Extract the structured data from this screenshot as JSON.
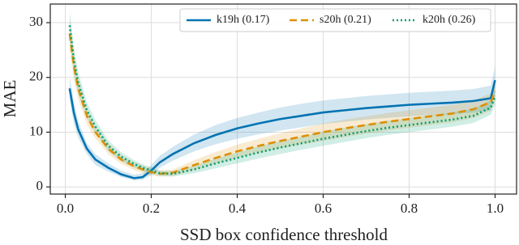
{
  "chart_data": {
    "type": "line",
    "xlabel": "SSD box confidence threshold",
    "ylabel": "MAE",
    "x": [
      0.01,
      0.02,
      0.03,
      0.05,
      0.07,
      0.1,
      0.13,
      0.16,
      0.18,
      0.2,
      0.22,
      0.25,
      0.3,
      0.35,
      0.4,
      0.45,
      0.5,
      0.55,
      0.6,
      0.65,
      0.7,
      0.75,
      0.8,
      0.85,
      0.9,
      0.95,
      0.99,
      1.0
    ],
    "series": [
      {
        "name": "k19h (0.17)",
        "color": "#0173b2",
        "dash": "none",
        "values": [
          18,
          13.5,
          10.5,
          7,
          5,
          3.5,
          2.3,
          1.6,
          1.8,
          3,
          4.5,
          6,
          8,
          9.5,
          10.7,
          11.6,
          12.4,
          13,
          13.6,
          14,
          14.4,
          14.7,
          15,
          15.2,
          15.4,
          15.7,
          16.2,
          19.5
        ],
        "lower": [
          16,
          11.5,
          9,
          6,
          4,
          2.8,
          1.8,
          1.2,
          1.3,
          2.2,
          3.5,
          4.8,
          6.5,
          7.8,
          8.8,
          9.6,
          10.3,
          10.9,
          11.5,
          11.9,
          12.3,
          12.6,
          12.9,
          13.1,
          13.3,
          13.6,
          14,
          17
        ],
        "upper": [
          20,
          15.5,
          12,
          8,
          6,
          4.3,
          3,
          2.2,
          2.5,
          4,
          5.7,
          7.3,
          9.6,
          11.3,
          12.6,
          13.6,
          14.5,
          15.2,
          15.8,
          16.2,
          16.6,
          16.9,
          17.2,
          17.4,
          17.6,
          17.9,
          18.5,
          22
        ]
      },
      {
        "name": "s20h (0.21)",
        "color": "#de8f05",
        "dash": "9 5",
        "values": [
          28,
          22,
          18,
          13,
          10,
          7,
          5,
          3.8,
          3.2,
          2.7,
          2.4,
          2.6,
          4,
          5.3,
          6.5,
          7.5,
          8.4,
          9.2,
          10,
          10.7,
          11.3,
          11.9,
          12.4,
          12.9,
          13.4,
          14.2,
          15.5,
          17.5
        ],
        "lower": [
          25,
          19.5,
          16,
          11.5,
          8.8,
          6,
          4.2,
          3.1,
          2.5,
          2.1,
          1.9,
          2,
          3.1,
          4.2,
          5.3,
          6.2,
          7,
          7.7,
          8.4,
          9.1,
          9.7,
          10.3,
          10.8,
          11.3,
          11.8,
          12.6,
          13.9,
          15.8
        ],
        "upper": [
          31,
          24.5,
          20,
          14.5,
          11.2,
          8,
          5.8,
          4.5,
          3.9,
          3.4,
          3,
          3.2,
          4.9,
          6.4,
          7.7,
          8.8,
          9.8,
          10.7,
          11.6,
          12.3,
          12.9,
          13.5,
          14,
          14.5,
          15,
          15.8,
          17.1,
          19.2
        ]
      },
      {
        "name": "k20h (0.26)",
        "color": "#029e73",
        "dash": "2 3",
        "values": [
          29.5,
          23,
          19,
          14,
          11,
          7.5,
          5.5,
          4.2,
          3.5,
          3,
          2.5,
          2.4,
          3.2,
          4.3,
          5.3,
          6.3,
          7.2,
          8,
          8.8,
          9.5,
          10.2,
          10.8,
          11.3,
          11.8,
          12.3,
          13,
          14.5,
          16.5
        ],
        "lower": [
          27,
          20.5,
          17,
          12.5,
          9.8,
          6.5,
          4.7,
          3.5,
          2.9,
          2.4,
          2,
          1.9,
          2.5,
          3.4,
          4.3,
          5.2,
          6,
          6.8,
          7.5,
          8.2,
          8.9,
          9.5,
          10,
          10.5,
          11,
          11.7,
          13.2,
          15
        ],
        "upper": [
          32,
          25.5,
          21,
          15.5,
          12.2,
          8.5,
          6.3,
          4.9,
          4.1,
          3.6,
          3,
          2.9,
          3.9,
          5.2,
          6.3,
          7.4,
          8.4,
          9.2,
          10.1,
          10.8,
          11.5,
          12.1,
          12.6,
          13.1,
          13.6,
          14.3,
          15.8,
          18
        ]
      }
    ],
    "xlim": [
      -0.035,
      1.05
    ],
    "ylim": [
      -1.3,
      33.4
    ],
    "xticks": [
      {
        "value": 0,
        "label": "0.0"
      },
      0.2,
      0.4,
      0.6,
      0.8,
      {
        "value": 1,
        "label": "1.0"
      }
    ],
    "yticks": [
      0,
      10,
      20,
      30
    ],
    "grid": true,
    "legend": "top"
  }
}
